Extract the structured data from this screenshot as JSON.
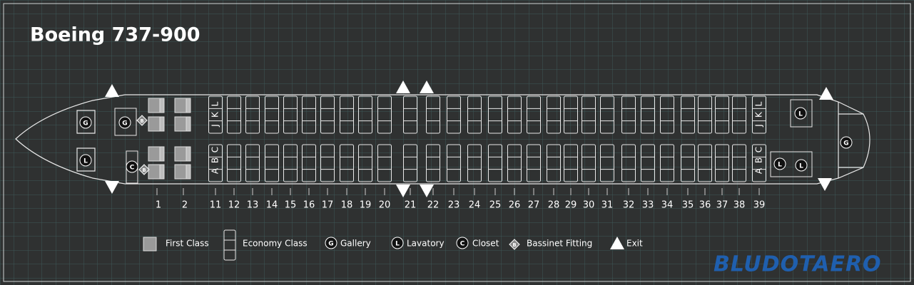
{
  "title": "Boeing 737-900",
  "rows": [
    "1",
    "2",
    "11",
    "12",
    "13",
    "14",
    "15",
    "16",
    "17",
    "18",
    "19",
    "20",
    "21",
    "22",
    "23",
    "24",
    "25",
    "26",
    "27",
    "28",
    "29",
    "30",
    "31",
    "32",
    "33",
    "34",
    "35",
    "36",
    "37",
    "38",
    "39"
  ],
  "seat_letters": {
    "upper": [
      "J",
      "K",
      "L"
    ],
    "lower": [
      "A",
      "B",
      "C"
    ]
  },
  "facilities": [
    "G",
    "L",
    "G",
    "B",
    "C",
    "B",
    "L",
    "L",
    "L",
    "G"
  ],
  "legend": [
    {
      "label": "First Class"
    },
    {
      "label": "Economy Class"
    },
    {
      "symbol": "G",
      "label": "Gallery"
    },
    {
      "symbol": "L",
      "label": "Lavatory"
    },
    {
      "symbol": "C",
      "label": "Closet"
    },
    {
      "symbol": "B",
      "label": "Bassinet Fitting"
    },
    {
      "label": "Exit"
    }
  ],
  "logo": "BLUDOTAERO"
}
